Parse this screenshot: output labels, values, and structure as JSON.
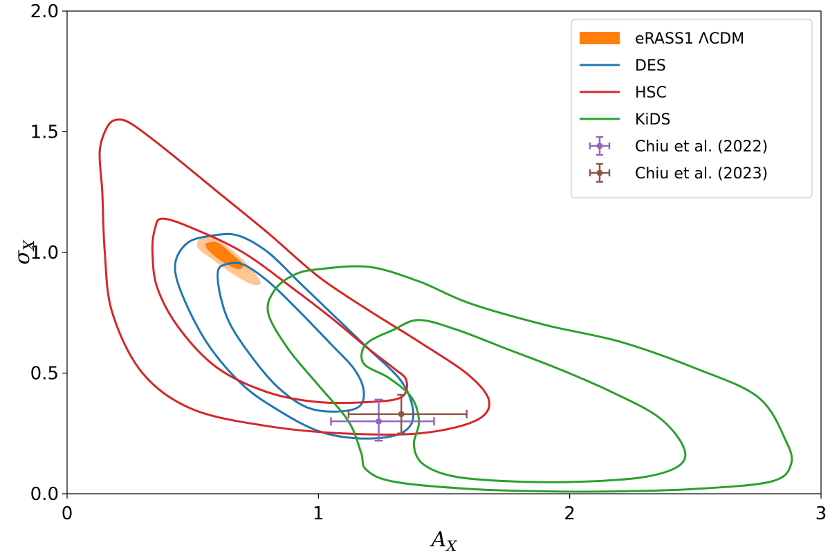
{
  "chart_data": {
    "type": "contour",
    "xlabel": "A",
    "xlabel_sub": "X",
    "ylabel": "σ",
    "ylabel_sub": "X",
    "xlim": [
      0,
      3
    ],
    "ylim": [
      0,
      2
    ],
    "xticks": [
      0,
      1,
      2,
      3
    ],
    "yticks": [
      0.0,
      0.5,
      1.0,
      1.5,
      2.0
    ],
    "xtick_labels": [
      "0",
      "1",
      "2",
      "3"
    ],
    "ytick_labels": [
      "0.0",
      "0.5",
      "1.0",
      "1.5",
      "2.0"
    ],
    "grid": false,
    "legend_position": "top-right",
    "series": [
      {
        "name": "eRASS1 ΛCDM",
        "kind": "filled",
        "color": "#ff7f0e",
        "contours": [
          {
            "level": "outer",
            "opacity": 0.45,
            "points": [
              [
                0.53,
                1.06
              ],
              [
                0.57,
                1.07
              ],
              [
                0.63,
                1.03
              ],
              [
                0.7,
                0.97
              ],
              [
                0.75,
                0.91
              ],
              [
                0.77,
                0.87
              ],
              [
                0.73,
                0.87
              ],
              [
                0.66,
                0.91
              ],
              [
                0.58,
                0.97
              ],
              [
                0.52,
                1.02
              ]
            ]
          },
          {
            "level": "inner",
            "opacity": 1.0,
            "points": [
              [
                0.56,
                1.04
              ],
              [
                0.6,
                1.04
              ],
              [
                0.66,
                0.99
              ],
              [
                0.7,
                0.95
              ],
              [
                0.68,
                0.93
              ],
              [
                0.62,
                0.96
              ],
              [
                0.57,
                1.0
              ],
              [
                0.55,
                1.03
              ]
            ]
          }
        ]
      },
      {
        "name": "DES",
        "kind": "line",
        "color": "#1f77b4",
        "contours": [
          {
            "level": "outer",
            "points": [
              [
                0.58,
                1.07
              ],
              [
                0.68,
                1.07
              ],
              [
                0.8,
                1.0
              ],
              [
                0.92,
                0.88
              ],
              [
                1.05,
                0.75
              ],
              [
                1.2,
                0.6
              ],
              [
                1.32,
                0.48
              ],
              [
                1.37,
                0.38
              ],
              [
                1.37,
                0.29
              ],
              [
                1.3,
                0.24
              ],
              [
                1.15,
                0.23
              ],
              [
                1.0,
                0.26
              ],
              [
                0.85,
                0.34
              ],
              [
                0.7,
                0.45
              ],
              [
                0.56,
                0.62
              ],
              [
                0.46,
                0.82
              ],
              [
                0.43,
                0.95
              ],
              [
                0.48,
                1.04
              ]
            ]
          },
          {
            "level": "inner",
            "points": [
              [
                0.63,
                0.95
              ],
              [
                0.7,
                0.95
              ],
              [
                0.8,
                0.88
              ],
              [
                0.92,
                0.76
              ],
              [
                1.05,
                0.62
              ],
              [
                1.14,
                0.52
              ],
              [
                1.18,
                0.43
              ],
              [
                1.16,
                0.36
              ],
              [
                1.06,
                0.34
              ],
              [
                0.95,
                0.36
              ],
              [
                0.84,
                0.44
              ],
              [
                0.74,
                0.56
              ],
              [
                0.65,
                0.7
              ],
              [
                0.61,
                0.82
              ],
              [
                0.6,
                0.92
              ]
            ]
          }
        ]
      },
      {
        "name": "HSC",
        "kind": "line",
        "color": "#d62728",
        "contours": [
          {
            "level": "outer",
            "points": [
              [
                0.2,
                1.55
              ],
              [
                0.26,
                1.53
              ],
              [
                0.4,
                1.42
              ],
              [
                0.6,
                1.25
              ],
              [
                0.8,
                1.08
              ],
              [
                1.0,
                0.9
              ],
              [
                1.2,
                0.76
              ],
              [
                1.4,
                0.63
              ],
              [
                1.6,
                0.49
              ],
              [
                1.68,
                0.38
              ],
              [
                1.62,
                0.3
              ],
              [
                1.4,
                0.25
              ],
              [
                1.1,
                0.25
              ],
              [
                0.8,
                0.28
              ],
              [
                0.5,
                0.35
              ],
              [
                0.3,
                0.5
              ],
              [
                0.18,
                0.75
              ],
              [
                0.15,
                1.0
              ],
              [
                0.14,
                1.25
              ],
              [
                0.13,
                1.42
              ],
              [
                0.16,
                1.52
              ]
            ]
          },
          {
            "level": "inner",
            "points": [
              [
                0.38,
                1.14
              ],
              [
                0.5,
                1.1
              ],
              [
                0.7,
                1.0
              ],
              [
                0.9,
                0.85
              ],
              [
                1.05,
                0.73
              ],
              [
                1.2,
                0.6
              ],
              [
                1.3,
                0.52
              ],
              [
                1.35,
                0.47
              ],
              [
                1.33,
                0.4
              ],
              [
                1.2,
                0.38
              ],
              [
                1.0,
                0.38
              ],
              [
                0.8,
                0.42
              ],
              [
                0.6,
                0.52
              ],
              [
                0.45,
                0.68
              ],
              [
                0.36,
                0.85
              ],
              [
                0.34,
                1.0
              ],
              [
                0.35,
                1.1
              ]
            ]
          }
        ]
      },
      {
        "name": "KiDS",
        "kind": "line",
        "color": "#2ca02c",
        "contours": [
          {
            "level": "outer",
            "points": [
              [
                1.0,
                0.93
              ],
              [
                1.2,
                0.94
              ],
              [
                1.4,
                0.88
              ],
              [
                1.6,
                0.79
              ],
              [
                1.9,
                0.7
              ],
              [
                2.2,
                0.63
              ],
              [
                2.5,
                0.52
              ],
              [
                2.75,
                0.4
              ],
              [
                2.86,
                0.22
              ],
              [
                2.88,
                0.12
              ],
              [
                2.8,
                0.05
              ],
              [
                2.5,
                0.02
              ],
              [
                2.2,
                0.01
              ],
              [
                1.9,
                0.01
              ],
              [
                1.6,
                0.02
              ],
              [
                1.3,
                0.05
              ],
              [
                1.19,
                0.1
              ],
              [
                1.17,
                0.17
              ],
              [
                1.12,
                0.3
              ],
              [
                1.0,
                0.45
              ],
              [
                0.88,
                0.6
              ],
              [
                0.8,
                0.75
              ],
              [
                0.83,
                0.85
              ],
              [
                0.91,
                0.91
              ]
            ]
          },
          {
            "level": "inner",
            "points": [
              [
                1.3,
                0.68
              ],
              [
                1.4,
                0.72
              ],
              [
                1.55,
                0.68
              ],
              [
                1.75,
                0.6
              ],
              [
                1.95,
                0.52
              ],
              [
                2.15,
                0.43
              ],
              [
                2.35,
                0.32
              ],
              [
                2.45,
                0.2
              ],
              [
                2.44,
                0.12
              ],
              [
                2.3,
                0.07
              ],
              [
                2.05,
                0.05
              ],
              [
                1.8,
                0.05
              ],
              [
                1.55,
                0.07
              ],
              [
                1.42,
                0.12
              ],
              [
                1.38,
                0.2
              ],
              [
                1.4,
                0.3
              ],
              [
                1.37,
                0.4
              ],
              [
                1.28,
                0.48
              ],
              [
                1.18,
                0.54
              ],
              [
                1.19,
                0.62
              ]
            ]
          }
        ]
      },
      {
        "name": "Chiu et al. (2022)",
        "kind": "errorbar",
        "color": "#9467bd",
        "points": [
          {
            "x": 1.24,
            "y": 0.3,
            "xerr_low": 0.19,
            "xerr_high": 0.22,
            "yerr_low": 0.08,
            "yerr_high": 0.09
          }
        ]
      },
      {
        "name": "Chiu et al. (2023)",
        "kind": "errorbar",
        "color": "#8c564b",
        "points": [
          {
            "x": 1.33,
            "y": 0.33,
            "xerr_low": 0.21,
            "xerr_high": 0.26,
            "yerr_low": 0.08,
            "yerr_high": 0.08
          }
        ]
      }
    ]
  }
}
